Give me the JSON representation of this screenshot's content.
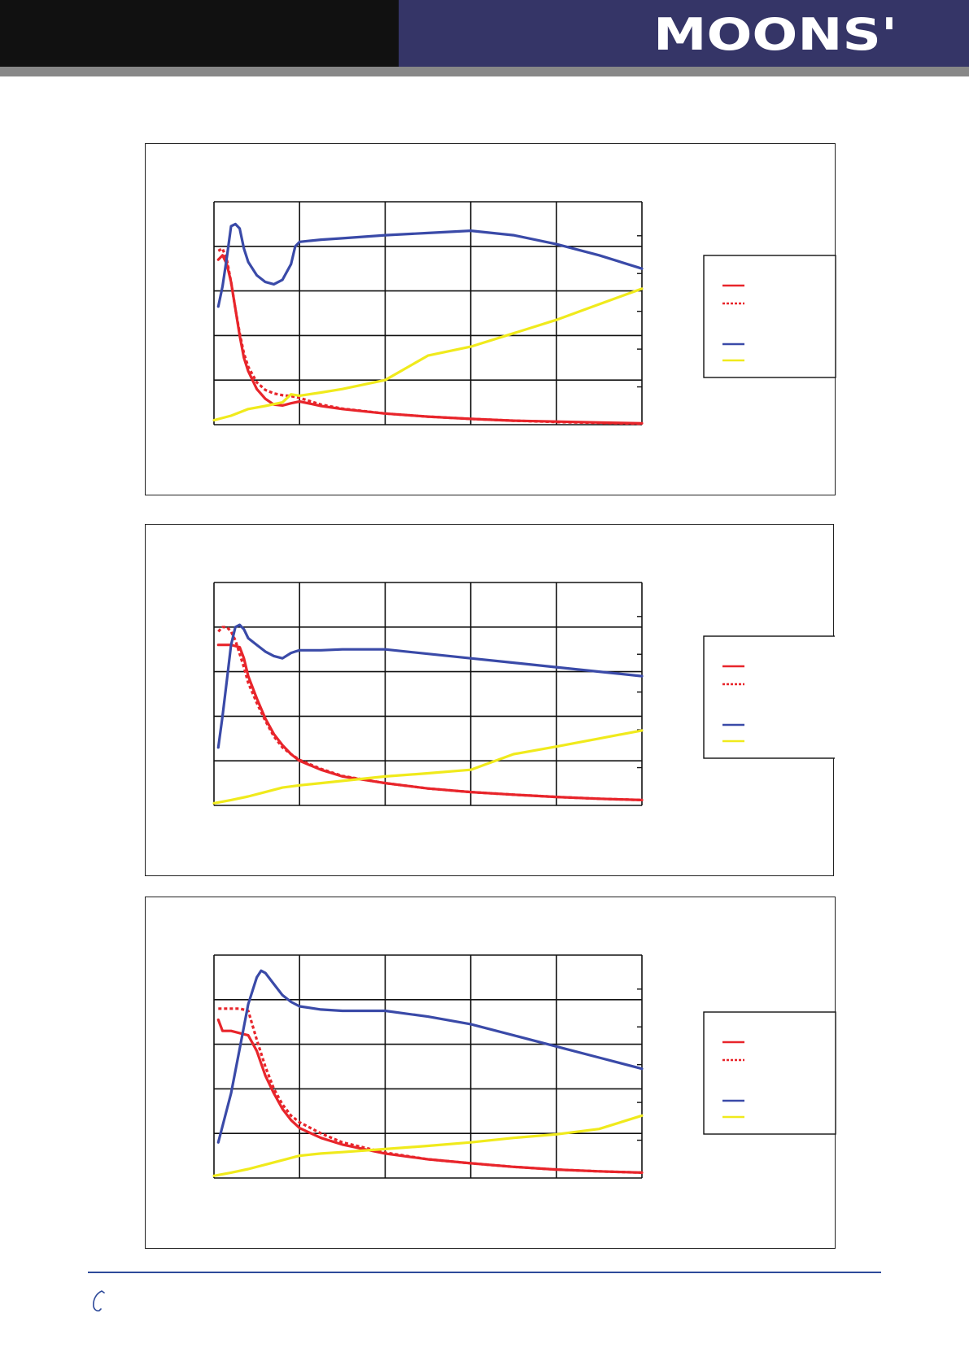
{
  "header": {
    "brand": "MOONS'",
    "colors": {
      "left_band": "#111111",
      "right_band": "#353567",
      "rule": "#888888",
      "logo": "#ffffff"
    }
  },
  "footer": {
    "icon": "phone-icon",
    "rule_color": "#2e4a9a"
  },
  "series_colors": {
    "red": "#e8252b",
    "blue": "#3a4aa8",
    "yellow": "#f0ea1c"
  },
  "chart_data": [
    {
      "type": "line",
      "x_range": [
        0,
        5
      ],
      "y_range": [
        0,
        5
      ],
      "grid": true,
      "legend": "right",
      "series": [
        {
          "color": "#e8252b",
          "style": "solid",
          "x": [
            0.05,
            0.1,
            0.15,
            0.2,
            0.25,
            0.3,
            0.35,
            0.4,
            0.5,
            0.6,
            0.7,
            0.8,
            0.9,
            1.0,
            1.25,
            1.5,
            2.0,
            2.5,
            3.0,
            3.5,
            4.0,
            4.5,
            5.0
          ],
          "y": [
            3.7,
            3.8,
            3.6,
            3.2,
            2.6,
            2.0,
            1.5,
            1.2,
            0.8,
            0.58,
            0.45,
            0.43,
            0.48,
            0.52,
            0.42,
            0.35,
            0.25,
            0.18,
            0.13,
            0.09,
            0.07,
            0.05,
            0.03
          ]
        },
        {
          "color": "#e8252b",
          "style": "dashed",
          "x": [
            0.05,
            0.1,
            0.15,
            0.2,
            0.25,
            0.3,
            0.35,
            0.4,
            0.5,
            0.6,
            0.7,
            0.8,
            0.9,
            1.0,
            1.25,
            1.5,
            2.0,
            2.5,
            3.0,
            3.5,
            4.0,
            4.5,
            5.0
          ],
          "y": [
            3.9,
            3.95,
            3.7,
            3.2,
            2.6,
            2.05,
            1.6,
            1.3,
            0.95,
            0.78,
            0.7,
            0.66,
            0.64,
            0.6,
            0.45,
            0.36,
            0.25,
            0.18,
            0.13,
            0.09,
            0.06,
            0.04,
            0.02
          ]
        },
        {
          "color": "#3a4aa8",
          "style": "solid",
          "x": [
            0.05,
            0.1,
            0.15,
            0.2,
            0.25,
            0.3,
            0.35,
            0.4,
            0.5,
            0.6,
            0.7,
            0.8,
            0.9,
            0.95,
            1.0,
            1.1,
            1.25,
            1.5,
            2.0,
            2.5,
            3.0,
            3.5,
            4.0,
            4.5,
            5.0
          ],
          "y": [
            2.65,
            3.1,
            3.75,
            4.45,
            4.5,
            4.4,
            3.95,
            3.65,
            3.35,
            3.2,
            3.15,
            3.25,
            3.6,
            4.0,
            4.1,
            4.12,
            4.15,
            4.18,
            4.25,
            4.3,
            4.35,
            4.25,
            4.05,
            3.8,
            3.5
          ]
        },
        {
          "color": "#f0ea1c",
          "style": "solid",
          "x": [
            0,
            0.2,
            0.4,
            0.6,
            0.8,
            0.9,
            1.0,
            1.25,
            1.5,
            2.0,
            2.5,
            3.0,
            3.5,
            4.0,
            4.5,
            5.0
          ],
          "y": [
            0.1,
            0.2,
            0.35,
            0.42,
            0.5,
            0.68,
            0.65,
            0.72,
            0.8,
            1.0,
            1.55,
            1.75,
            2.05,
            2.35,
            2.7,
            3.05
          ]
        }
      ]
    },
    {
      "type": "line",
      "x_range": [
        0,
        5
      ],
      "y_range": [
        0,
        5
      ],
      "grid": true,
      "legend": "right",
      "series": [
        {
          "color": "#e8252b",
          "style": "solid",
          "x": [
            0.05,
            0.1,
            0.2,
            0.3,
            0.35,
            0.4,
            0.5,
            0.6,
            0.7,
            0.8,
            0.9,
            1.0,
            1.25,
            1.5,
            2.0,
            2.5,
            3.0,
            3.5,
            4.0,
            4.5,
            5.0
          ],
          "y": [
            3.6,
            3.6,
            3.6,
            3.55,
            3.3,
            2.9,
            2.4,
            1.95,
            1.6,
            1.35,
            1.15,
            1.0,
            0.8,
            0.65,
            0.5,
            0.38,
            0.3,
            0.24,
            0.19,
            0.15,
            0.12
          ]
        },
        {
          "color": "#e8252b",
          "style": "dashed",
          "x": [
            0.05,
            0.1,
            0.15,
            0.2,
            0.25,
            0.3,
            0.35,
            0.4,
            0.5,
            0.6,
            0.7,
            0.8,
            0.9,
            1.0,
            1.25,
            1.5,
            2.0,
            2.5,
            3.0,
            3.5,
            4.0,
            4.5,
            5.0
          ],
          "y": [
            3.9,
            4.0,
            4.0,
            3.9,
            3.7,
            3.4,
            3.1,
            2.75,
            2.3,
            1.9,
            1.55,
            1.3,
            1.15,
            1.02,
            0.82,
            0.66,
            0.5,
            0.38,
            0.3,
            0.24,
            0.19,
            0.15,
            0.12
          ]
        },
        {
          "color": "#3a4aa8",
          "style": "solid",
          "x": [
            0.05,
            0.1,
            0.15,
            0.2,
            0.25,
            0.3,
            0.35,
            0.4,
            0.5,
            0.6,
            0.7,
            0.8,
            0.9,
            0.95,
            1.0,
            1.25,
            1.5,
            2.0,
            2.5,
            3.0,
            3.5,
            4.0,
            4.5,
            5.0
          ],
          "y": [
            1.3,
            2.0,
            2.8,
            3.6,
            4.0,
            4.05,
            3.95,
            3.75,
            3.6,
            3.45,
            3.35,
            3.3,
            3.42,
            3.45,
            3.48,
            3.48,
            3.5,
            3.5,
            3.4,
            3.3,
            3.2,
            3.1,
            3.0,
            2.9
          ]
        },
        {
          "color": "#f0ea1c",
          "style": "solid",
          "x": [
            0,
            0.2,
            0.4,
            0.6,
            0.8,
            1.0,
            1.25,
            1.5,
            2.0,
            2.5,
            3.0,
            3.5,
            4.0,
            4.5,
            5.0
          ],
          "y": [
            0.05,
            0.12,
            0.2,
            0.3,
            0.4,
            0.45,
            0.5,
            0.55,
            0.65,
            0.72,
            0.8,
            1.15,
            1.32,
            1.5,
            1.68
          ]
        }
      ]
    },
    {
      "type": "line",
      "x_range": [
        0,
        5
      ],
      "y_range": [
        0,
        5
      ],
      "grid": true,
      "legend": "right",
      "series": [
        {
          "color": "#e8252b",
          "style": "solid",
          "x": [
            0.05,
            0.1,
            0.2,
            0.3,
            0.4,
            0.5,
            0.6,
            0.7,
            0.8,
            0.9,
            1.0,
            1.25,
            1.5,
            2.0,
            2.5,
            3.0,
            3.5,
            4.0,
            4.5,
            5.0
          ],
          "y": [
            3.55,
            3.3,
            3.3,
            3.25,
            3.2,
            2.85,
            2.3,
            1.9,
            1.55,
            1.3,
            1.12,
            0.9,
            0.75,
            0.55,
            0.42,
            0.33,
            0.25,
            0.19,
            0.15,
            0.12
          ]
        },
        {
          "color": "#e8252b",
          "style": "dashed",
          "x": [
            0.05,
            0.1,
            0.2,
            0.3,
            0.4,
            0.5,
            0.6,
            0.7,
            0.8,
            0.9,
            1.0,
            1.25,
            1.5,
            2.0,
            2.5,
            3.0,
            3.5,
            4.0,
            4.5,
            5.0
          ],
          "y": [
            3.8,
            3.8,
            3.8,
            3.8,
            3.75,
            3.1,
            2.5,
            2.0,
            1.65,
            1.4,
            1.25,
            1.0,
            0.8,
            0.57,
            0.42,
            0.33,
            0.25,
            0.19,
            0.15,
            0.12
          ]
        },
        {
          "color": "#3a4aa8",
          "style": "solid",
          "x": [
            0.05,
            0.2,
            0.3,
            0.4,
            0.5,
            0.55,
            0.6,
            0.7,
            0.8,
            0.9,
            1.0,
            1.25,
            1.5,
            2.0,
            2.5,
            3.0,
            3.5,
            4.0,
            4.5,
            5.0
          ],
          "y": [
            0.8,
            1.9,
            2.9,
            3.9,
            4.5,
            4.65,
            4.6,
            4.35,
            4.1,
            3.95,
            3.85,
            3.78,
            3.75,
            3.75,
            3.62,
            3.45,
            3.2,
            2.95,
            2.7,
            2.45
          ]
        },
        {
          "color": "#f0ea1c",
          "style": "solid",
          "x": [
            0,
            0.2,
            0.4,
            0.6,
            0.8,
            1.0,
            1.25,
            1.5,
            2.0,
            2.5,
            3.0,
            3.5,
            4.0,
            4.5,
            5.0
          ],
          "y": [
            0.05,
            0.12,
            0.2,
            0.3,
            0.4,
            0.5,
            0.55,
            0.58,
            0.65,
            0.72,
            0.8,
            0.9,
            0.98,
            1.1,
            1.4
          ]
        }
      ]
    }
  ]
}
